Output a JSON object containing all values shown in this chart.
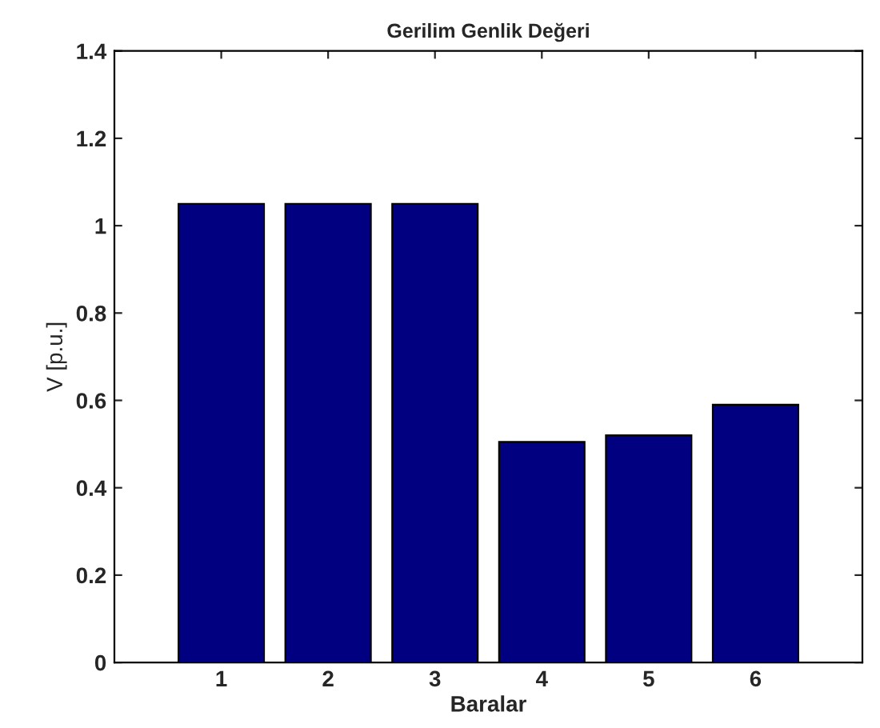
{
  "chart_data": {
    "type": "bar",
    "title": "Gerilim Genlik Değeri",
    "xlabel": "Baralar",
    "ylabel": "V [p.u.]",
    "categories": [
      "1",
      "2",
      "3",
      "4",
      "5",
      "6"
    ],
    "values": [
      1.05,
      1.05,
      1.05,
      0.505,
      0.52,
      0.59
    ],
    "color": "#000080",
    "ylim": [
      0,
      1.4
    ],
    "yticks": [
      0,
      0.2,
      0.4,
      0.6,
      0.8,
      1,
      1.2,
      1.4
    ],
    "grid": false,
    "legend": false
  }
}
